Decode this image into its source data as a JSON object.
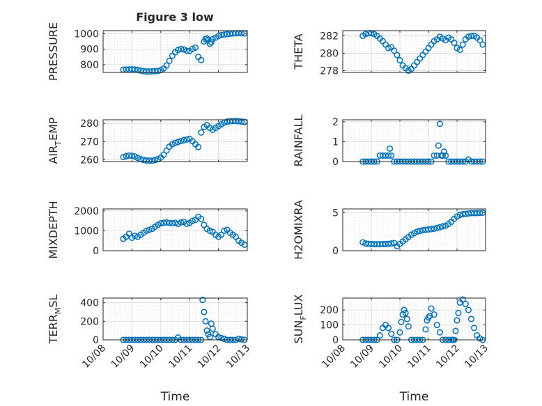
{
  "figure": {
    "title": "Figure 3 low"
  },
  "x_axis": {
    "label": "Time",
    "ticks": [
      "10/08",
      "10/09",
      "10/10",
      "10/11",
      "10/12",
      "10/13"
    ],
    "range": [
      0,
      5
    ]
  },
  "colors": {
    "marker": "#0072BD",
    "grid": "#DDDDDD",
    "axis": "#262626"
  },
  "chart_data": [
    {
      "type": "scatter",
      "ylabel": "PRESSURE",
      "yticks": [
        800,
        900,
        1000
      ],
      "ylim": [
        750,
        1020
      ],
      "x": [
        0.7,
        0.8,
        0.9,
        1.0,
        1.1,
        1.2,
        1.3,
        1.4,
        1.5,
        1.6,
        1.7,
        1.8,
        1.9,
        2.0,
        2.1,
        2.2,
        2.3,
        2.4,
        2.5,
        2.6,
        2.7,
        2.8,
        2.9,
        3.0,
        3.1,
        3.2,
        3.3,
        3.4,
        3.5,
        3.55,
        3.6,
        3.65,
        3.7,
        3.75,
        3.8,
        3.9,
        4.0,
        4.1,
        4.2,
        4.3,
        4.4,
        4.5,
        4.6,
        4.7,
        4.8,
        4.9
      ],
      "y": [
        768,
        769,
        769,
        770,
        769,
        766,
        762,
        758,
        756,
        756,
        757,
        758,
        760,
        765,
        775,
        795,
        825,
        858,
        880,
        895,
        902,
        898,
        890,
        888,
        902,
        910,
        850,
        830,
        950,
        965,
        970,
        960,
        935,
        945,
        965,
        975,
        985,
        992,
        995,
        998,
        1000,
        1002,
        1003,
        1004,
        1003,
        1002
      ]
    },
    {
      "type": "scatter",
      "ylabel": "THETA",
      "yticks": [
        278,
        280,
        282
      ],
      "ylim": [
        277.8,
        282.6
      ],
      "x": [
        0.7,
        0.8,
        0.9,
        1.0,
        1.1,
        1.2,
        1.3,
        1.4,
        1.5,
        1.6,
        1.7,
        1.8,
        1.9,
        2.0,
        2.1,
        2.2,
        2.3,
        2.4,
        2.5,
        2.6,
        2.7,
        2.8,
        2.9,
        3.0,
        3.1,
        3.2,
        3.3,
        3.4,
        3.5,
        3.6,
        3.7,
        3.8,
        3.9,
        4.0,
        4.1,
        4.2,
        4.3,
        4.4,
        4.5,
        4.6,
        4.7,
        4.8,
        4.9
      ],
      "y": [
        282.0,
        282.2,
        282.3,
        282.3,
        282.2,
        282.0,
        281.7,
        281.4,
        281.0,
        280.6,
        280.7,
        280.3,
        279.8,
        279.2,
        278.6,
        278.3,
        278.0,
        278.2,
        278.6,
        279.0,
        279.4,
        279.8,
        280.2,
        280.6,
        281.0,
        281.4,
        281.6,
        281.9,
        281.7,
        281.5,
        281.8,
        281.6,
        281.2,
        280.6,
        280.4,
        281.0,
        281.6,
        281.9,
        282.0,
        282.0,
        281.8,
        281.5,
        281.0
      ]
    },
    {
      "type": "scatter",
      "ylabel": "AIR_TEMP",
      "yticks": [
        260,
        270,
        280
      ],
      "ylim": [
        259,
        282
      ],
      "x": [
        0.7,
        0.8,
        0.9,
        1.0,
        1.1,
        1.2,
        1.3,
        1.4,
        1.5,
        1.6,
        1.7,
        1.8,
        1.9,
        2.0,
        2.1,
        2.2,
        2.3,
        2.4,
        2.5,
        2.6,
        2.7,
        2.8,
        2.9,
        3.0,
        3.1,
        3.2,
        3.3,
        3.4,
        3.5,
        3.6,
        3.7,
        3.8,
        3.9,
        4.0,
        4.1,
        4.2,
        4.3,
        4.4,
        4.5,
        4.6,
        4.7,
        4.8,
        4.9
      ],
      "y": [
        261.5,
        262.0,
        262.3,
        262.2,
        261.8,
        261.0,
        260.3,
        259.9,
        259.6,
        259.5,
        259.5,
        259.8,
        260.3,
        261.2,
        262.8,
        265.0,
        267.2,
        268.5,
        269.3,
        269.8,
        270.3,
        270.8,
        271.2,
        271.5,
        270.2,
        268.5,
        267.0,
        275.0,
        278.0,
        279.0,
        277.5,
        276.5,
        277.5,
        278.5,
        279.5,
        280.5,
        281.0,
        281.2,
        281.3,
        281.3,
        281.2,
        281.0,
        280.8
      ]
    },
    {
      "type": "scatter",
      "ylabel": "RAINFALL",
      "yticks": [
        0,
        1,
        2
      ],
      "ylim": [
        0,
        2.1
      ],
      "x": [
        0.7,
        0.8,
        0.9,
        1.0,
        1.1,
        1.2,
        1.3,
        1.4,
        1.5,
        1.6,
        1.65,
        1.7,
        1.8,
        1.9,
        2.0,
        2.1,
        2.2,
        2.3,
        2.4,
        2.5,
        2.6,
        2.7,
        2.8,
        2.9,
        3.0,
        3.1,
        3.2,
        3.3,
        3.35,
        3.4,
        3.45,
        3.5,
        3.55,
        3.6,
        3.7,
        3.8,
        3.9,
        4.0,
        4.1,
        4.2,
        4.3,
        4.4,
        4.5,
        4.6,
        4.7,
        4.8,
        4.9
      ],
      "y": [
        0,
        0,
        0,
        0,
        0,
        0,
        0.3,
        0.3,
        0.3,
        0.3,
        0.65,
        0.3,
        0,
        0,
        0,
        0,
        0,
        0,
        0,
        0,
        0,
        0,
        0,
        0,
        0,
        0,
        0.3,
        0.3,
        0.8,
        1.9,
        0.3,
        0.3,
        0.5,
        0.3,
        0,
        0,
        0,
        0,
        0,
        0,
        0,
        0.1,
        0,
        0,
        0,
        0,
        0
      ]
    },
    {
      "type": "scatter",
      "ylabel": "MIXDEPTH",
      "yticks": [
        0,
        1000,
        2000
      ],
      "ylim": [
        0,
        2100
      ],
      "x": [
        0.7,
        0.8,
        0.9,
        1.0,
        1.1,
        1.2,
        1.3,
        1.4,
        1.5,
        1.6,
        1.7,
        1.8,
        1.9,
        2.0,
        2.1,
        2.2,
        2.3,
        2.4,
        2.5,
        2.6,
        2.7,
        2.8,
        2.9,
        3.0,
        3.1,
        3.2,
        3.3,
        3.4,
        3.5,
        3.6,
        3.7,
        3.8,
        3.9,
        4.0,
        4.1,
        4.2,
        4.3,
        4.4,
        4.5,
        4.6,
        4.7,
        4.8,
        4.9
      ],
      "y": [
        600,
        700,
        850,
        650,
        750,
        700,
        800,
        900,
        1000,
        1050,
        1100,
        1200,
        1300,
        1380,
        1400,
        1420,
        1400,
        1380,
        1400,
        1350,
        1420,
        1450,
        1350,
        1400,
        1500,
        1550,
        1700,
        1600,
        1300,
        1100,
        1000,
        950,
        800,
        700,
        800,
        1000,
        1050,
        900,
        800,
        700,
        500,
        400,
        300
      ]
    },
    {
      "type": "scatter",
      "ylabel": "H2OMIXRA",
      "yticks": [
        0,
        5
      ],
      "ylim": [
        0,
        5.5
      ],
      "x": [
        0.7,
        0.8,
        0.9,
        1.0,
        1.1,
        1.2,
        1.3,
        1.4,
        1.5,
        1.6,
        1.7,
        1.8,
        1.9,
        2.0,
        2.1,
        2.2,
        2.3,
        2.4,
        2.5,
        2.6,
        2.7,
        2.8,
        2.9,
        3.0,
        3.1,
        3.2,
        3.3,
        3.4,
        3.5,
        3.6,
        3.7,
        3.8,
        3.9,
        4.0,
        4.1,
        4.2,
        4.3,
        4.4,
        4.5,
        4.6,
        4.7,
        4.8,
        4.9
      ],
      "y": [
        1.1,
        0.95,
        0.9,
        0.88,
        0.86,
        0.85,
        0.85,
        0.86,
        0.88,
        0.9,
        0.95,
        1.0,
        0.6,
        0.9,
        1.2,
        1.5,
        1.8,
        2.1,
        2.3,
        2.5,
        2.6,
        2.7,
        2.75,
        2.8,
        2.85,
        2.9,
        3.0,
        3.1,
        3.2,
        3.3,
        3.5,
        3.8,
        4.2,
        4.5,
        4.7,
        4.8,
        4.85,
        4.9,
        4.95,
        4.95,
        4.95,
        5.0,
        5.0
      ]
    },
    {
      "type": "scatter",
      "ylabel": "TERR_MSL",
      "yticks": [
        0,
        200,
        400
      ],
      "ylim": [
        0,
        450
      ],
      "x": [
        0.7,
        0.8,
        0.9,
        1.0,
        1.1,
        1.2,
        1.3,
        1.4,
        1.5,
        1.6,
        1.7,
        1.8,
        1.9,
        2.0,
        2.1,
        2.2,
        2.3,
        2.4,
        2.5,
        2.6,
        2.7,
        2.8,
        2.9,
        3.0,
        3.1,
        3.2,
        3.3,
        3.4,
        3.45,
        3.5,
        3.55,
        3.6,
        3.65,
        3.7,
        3.75,
        3.8,
        3.9,
        4.0,
        4.1,
        4.2,
        4.3,
        4.4,
        4.5,
        4.6,
        4.7,
        4.8,
        4.9
      ],
      "y": [
        0,
        0,
        0,
        0,
        0,
        0,
        0,
        0,
        0,
        0,
        0,
        0,
        0,
        0,
        0,
        0,
        0,
        0,
        0,
        25,
        0,
        0,
        0,
        0,
        0,
        0,
        0,
        0,
        430,
        300,
        200,
        100,
        60,
        30,
        175,
        120,
        60,
        30,
        20,
        10,
        0,
        0,
        0,
        0,
        10,
        5,
        0
      ]
    },
    {
      "type": "scatter",
      "ylabel": "SUN_FLUX",
      "yticks": [
        0,
        100,
        200
      ],
      "ylim": [
        0,
        280
      ],
      "x": [
        0.7,
        0.8,
        0.9,
        1.0,
        1.1,
        1.2,
        1.3,
        1.4,
        1.5,
        1.6,
        1.7,
        1.8,
        1.9,
        2.0,
        2.05,
        2.1,
        2.15,
        2.2,
        2.25,
        2.3,
        2.4,
        2.5,
        2.6,
        2.7,
        2.8,
        2.9,
        2.95,
        3.0,
        3.05,
        3.1,
        3.2,
        3.3,
        3.4,
        3.5,
        3.6,
        3.7,
        3.8,
        3.85,
        3.9,
        3.95,
        4.0,
        4.05,
        4.1,
        4.2,
        4.3,
        4.4,
        4.5,
        4.6,
        4.7,
        4.8,
        4.9
      ],
      "y": [
        0,
        0,
        0,
        0,
        0,
        0,
        30,
        80,
        100,
        80,
        40,
        0,
        0,
        50,
        120,
        170,
        200,
        180,
        140,
        90,
        0,
        0,
        0,
        0,
        0,
        70,
        130,
        150,
        160,
        210,
        170,
        100,
        50,
        0,
        0,
        0,
        0,
        0,
        0,
        60,
        130,
        180,
        250,
        270,
        240,
        200,
        140,
        80,
        30,
        10,
        0
      ]
    }
  ]
}
